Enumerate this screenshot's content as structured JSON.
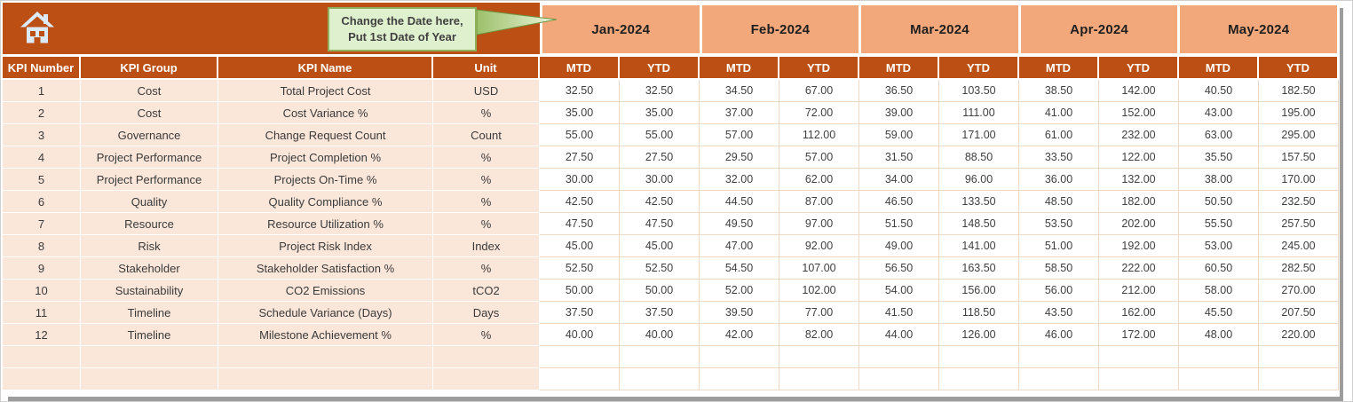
{
  "header": {
    "callout": {
      "line1": "Change the Date here,",
      "line2": "Put 1st Date of Year"
    },
    "months": [
      "Jan-2024",
      "Feb-2024",
      "Mar-2024",
      "Apr-2024",
      "May-2024"
    ],
    "subheaders": [
      "MTD",
      "YTD"
    ]
  },
  "table": {
    "columns": [
      "KPI Number",
      "KPI Group",
      "KPI Name",
      "Unit"
    ],
    "rows": [
      {
        "kpi_number": "1",
        "group": "Cost",
        "name": "Total Project Cost",
        "unit": "USD",
        "values": [
          "32.50",
          "32.50",
          "34.50",
          "67.00",
          "36.50",
          "103.50",
          "38.50",
          "142.00",
          "40.50",
          "182.50"
        ]
      },
      {
        "kpi_number": "2",
        "group": "Cost",
        "name": "Cost Variance %",
        "unit": "%",
        "values": [
          "35.00",
          "35.00",
          "37.00",
          "72.00",
          "39.00",
          "111.00",
          "41.00",
          "152.00",
          "43.00",
          "195.00"
        ]
      },
      {
        "kpi_number": "3",
        "group": "Governance",
        "name": "Change Request Count",
        "unit": "Count",
        "values": [
          "55.00",
          "55.00",
          "57.00",
          "112.00",
          "59.00",
          "171.00",
          "61.00",
          "232.00",
          "63.00",
          "295.00"
        ]
      },
      {
        "kpi_number": "4",
        "group": "Project Performance",
        "name": "Project Completion %",
        "unit": "%",
        "values": [
          "27.50",
          "27.50",
          "29.50",
          "57.00",
          "31.50",
          "88.50",
          "33.50",
          "122.00",
          "35.50",
          "157.50"
        ]
      },
      {
        "kpi_number": "5",
        "group": "Project Performance",
        "name": "Projects On-Time %",
        "unit": "%",
        "values": [
          "30.00",
          "30.00",
          "32.00",
          "62.00",
          "34.00",
          "96.00",
          "36.00",
          "132.00",
          "38.00",
          "170.00"
        ]
      },
      {
        "kpi_number": "6",
        "group": "Quality",
        "name": "Quality Compliance %",
        "unit": "%",
        "values": [
          "42.50",
          "42.50",
          "44.50",
          "87.00",
          "46.50",
          "133.50",
          "48.50",
          "182.00",
          "50.50",
          "232.50"
        ]
      },
      {
        "kpi_number": "7",
        "group": "Resource",
        "name": "Resource Utilization %",
        "unit": "%",
        "values": [
          "47.50",
          "47.50",
          "49.50",
          "97.00",
          "51.50",
          "148.50",
          "53.50",
          "202.00",
          "55.50",
          "257.50"
        ]
      },
      {
        "kpi_number": "8",
        "group": "Risk",
        "name": "Project Risk Index",
        "unit": "Index",
        "values": [
          "45.00",
          "45.00",
          "47.00",
          "92.00",
          "49.00",
          "141.00",
          "51.00",
          "192.00",
          "53.00",
          "245.00"
        ]
      },
      {
        "kpi_number": "9",
        "group": "Stakeholder",
        "name": "Stakeholder Satisfaction %",
        "unit": "%",
        "values": [
          "52.50",
          "52.50",
          "54.50",
          "107.00",
          "56.50",
          "163.50",
          "58.50",
          "222.00",
          "60.50",
          "282.50"
        ]
      },
      {
        "kpi_number": "10",
        "group": "Sustainability",
        "name": "CO2 Emissions",
        "unit": "tCO2",
        "values": [
          "50.00",
          "50.00",
          "52.00",
          "102.00",
          "54.00",
          "156.00",
          "56.00",
          "212.00",
          "58.00",
          "270.00"
        ]
      },
      {
        "kpi_number": "11",
        "group": "Timeline",
        "name": "Schedule Variance (Days)",
        "unit": "Days",
        "values": [
          "37.50",
          "37.50",
          "39.50",
          "77.00",
          "41.50",
          "118.50",
          "43.50",
          "162.00",
          "45.50",
          "207.50"
        ]
      },
      {
        "kpi_number": "12",
        "group": "Timeline",
        "name": "Milestone Achievement %",
        "unit": "%",
        "values": [
          "40.00",
          "40.00",
          "42.00",
          "82.00",
          "44.00",
          "126.00",
          "46.00",
          "172.00",
          "48.00",
          "220.00"
        ]
      }
    ],
    "empty_rows": 2
  },
  "colors": {
    "rust": "#BC5014",
    "month_header": "#F3A87C",
    "row_peach": "#FBE7DA",
    "grid_on_white": "#EFD8C4",
    "callout_bg": "#DFF0CE",
    "callout_border": "#8FAF5C",
    "arrow_dark": "#9DC06A",
    "arrow_light": "#EAF5DC"
  }
}
